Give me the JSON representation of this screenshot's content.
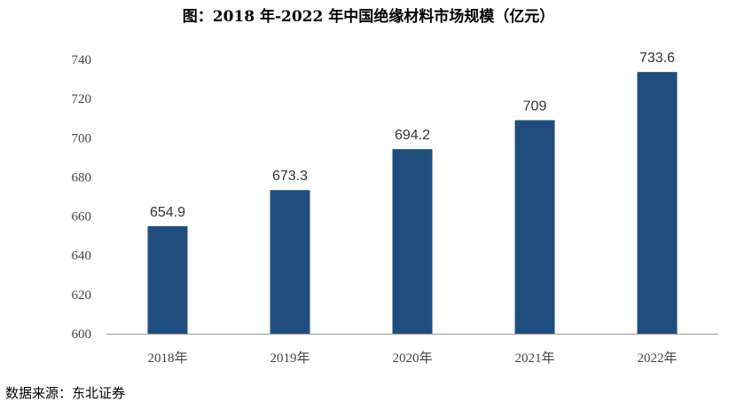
{
  "title": "图：2018 年-2022 年中国绝缘材料市场规模（亿元）",
  "source": "数据来源：东北证券",
  "colors": {
    "bar": "#1f4e7e",
    "axis": "#9a9a9a",
    "text": "#444444"
  },
  "chart_data": {
    "type": "bar",
    "title": "图：2018 年-2022 年中国绝缘材料市场规模（亿元）",
    "categories": [
      "2018年",
      "2019年",
      "2020年",
      "2021年",
      "2022年"
    ],
    "values": [
      654.9,
      673.3,
      694.2,
      709,
      733.6
    ],
    "data_labels": [
      "654.9",
      "673.3",
      "694.2",
      "709",
      "733.6"
    ],
    "yticks": [
      "600",
      "620",
      "640",
      "660",
      "680",
      "700",
      "720",
      "740"
    ],
    "ylim": [
      600,
      740
    ],
    "xlabel": "",
    "ylabel": "",
    "grid": false,
    "legend": "none"
  }
}
